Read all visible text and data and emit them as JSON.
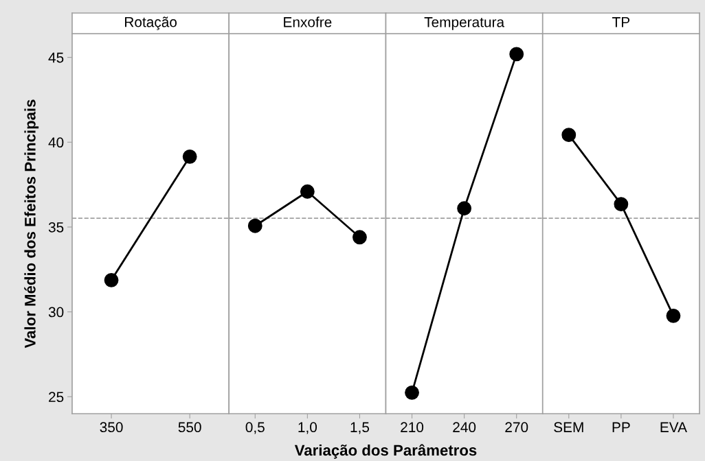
{
  "chart_data": [
    {
      "type": "line",
      "title": "Rotação",
      "ylabel": "Valor Médio dos Efeitos Principais",
      "xlabel": "Variação dos Parâmetros",
      "categories": [
        "350",
        "550"
      ],
      "series": [
        {
          "color": "#000000",
          "values": [
            31.87,
            39.15
          ]
        }
      ],
      "ylim": [
        24.0,
        46.4
      ],
      "yticks": [
        25,
        30,
        35,
        40,
        45
      ],
      "ref_lines": [
        {
          "axis": "y",
          "value": 35.52,
          "color": "#a0a0a0",
          "line_style": "dashed"
        }
      ],
      "marker": "circle",
      "grid": false
    },
    {
      "type": "line",
      "title": "Enxofre",
      "categories": [
        "0,5",
        "1,0",
        "1,5"
      ],
      "series": [
        {
          "color": "#000000",
          "values": [
            35.07,
            37.09,
            34.4
          ]
        }
      ],
      "ylim": [
        24.0,
        46.4
      ],
      "tick_labels": "x",
      "ref_lines": [
        {
          "axis": "y",
          "value": 35.52,
          "color": "#a0a0a0",
          "line_style": "dashed"
        }
      ],
      "marker": "circle",
      "grid": false
    },
    {
      "type": "line",
      "title": "Temperatura",
      "categories": [
        "210",
        "240",
        "270"
      ],
      "series": [
        {
          "color": "#000000",
          "values": [
            25.24,
            36.1,
            45.19
          ]
        }
      ],
      "ylim": [
        24.0,
        46.4
      ],
      "tick_labels": "x",
      "ref_lines": [
        {
          "axis": "y",
          "value": 35.52,
          "color": "#a0a0a0",
          "line_style": "dashed"
        }
      ],
      "marker": "circle",
      "grid": false
    },
    {
      "type": "line",
      "title": "TP",
      "categories": [
        "SEM",
        "PP",
        "EVA"
      ],
      "series": [
        {
          "color": "#000000",
          "values": [
            40.43,
            36.35,
            29.77
          ]
        }
      ],
      "ylim": [
        24.0,
        46.4
      ],
      "tick_labels": "x",
      "ref_lines": [
        {
          "axis": "y",
          "value": 35.52,
          "color": "#a0a0a0",
          "line_style": "dashed"
        }
      ],
      "marker": "circle",
      "grid": false
    }
  ]
}
